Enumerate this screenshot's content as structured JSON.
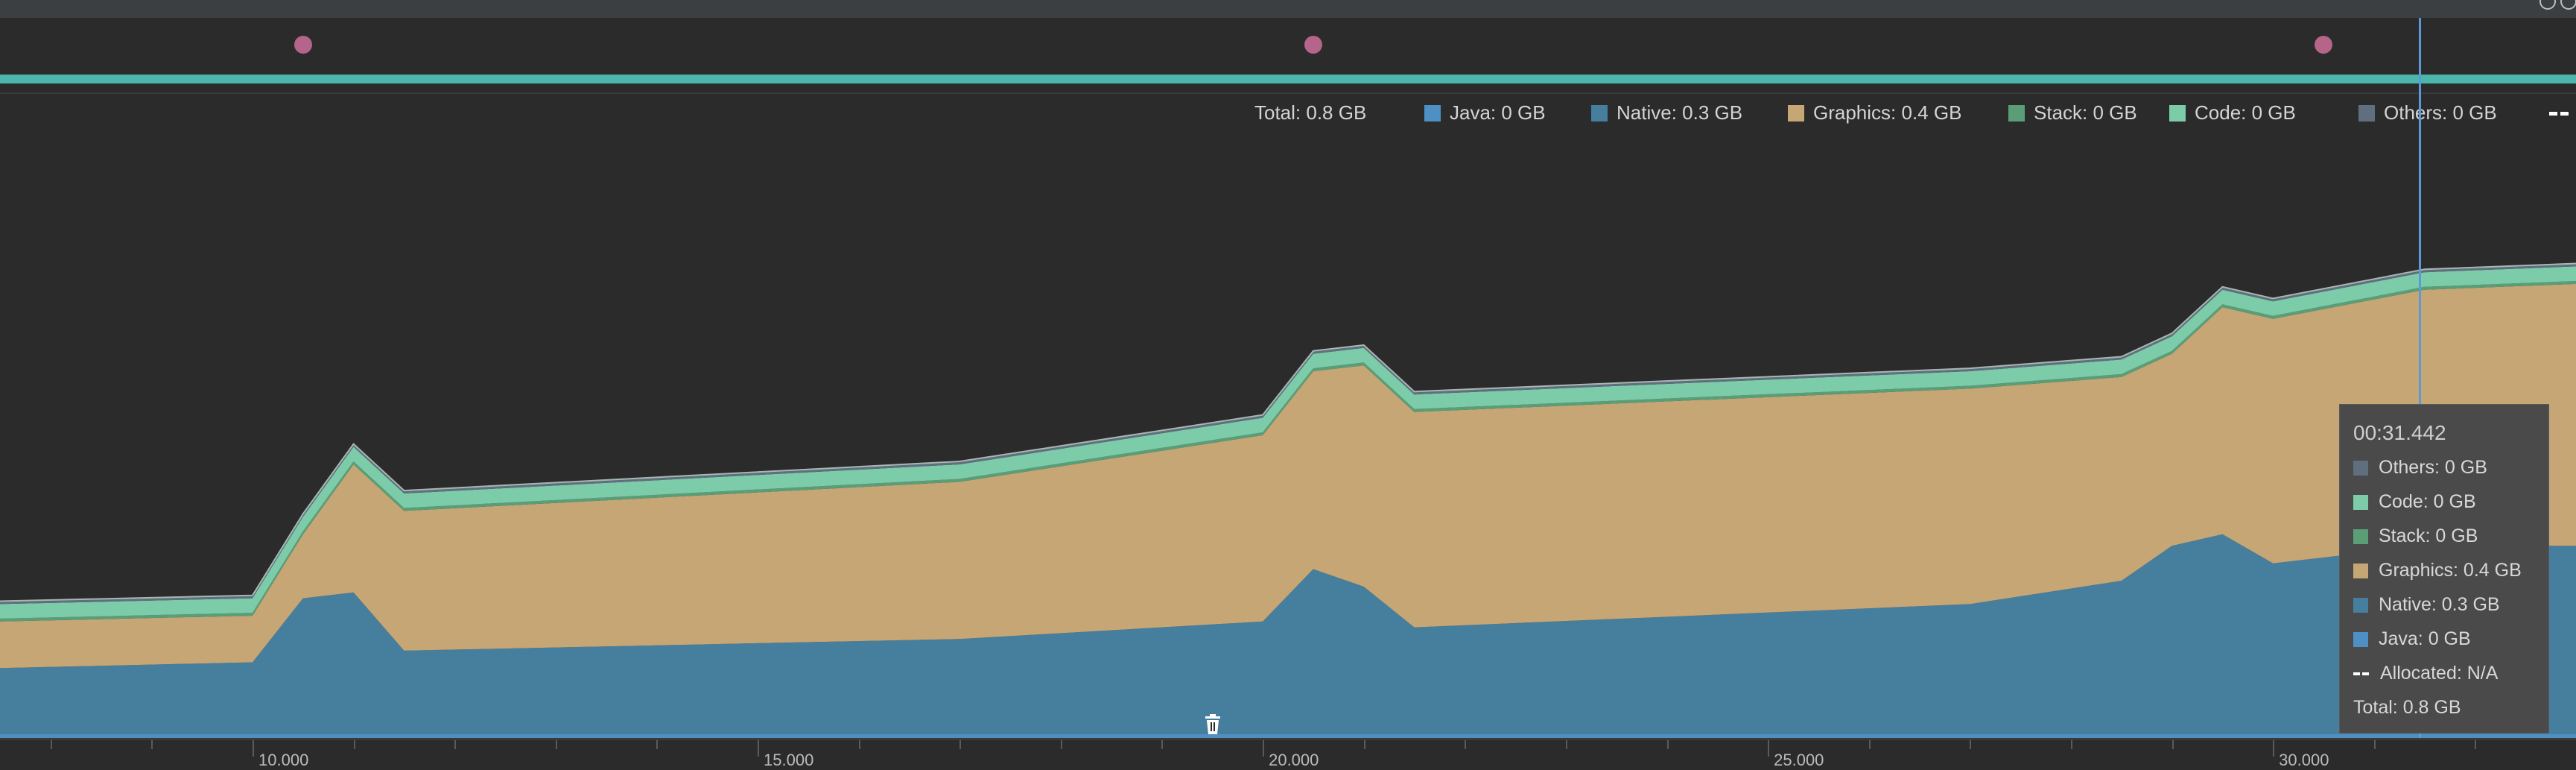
{
  "legend": {
    "total": "Total: 0.8 GB",
    "java": "Java: 0 GB",
    "native": "Native: 0.3 GB",
    "graphics": "Graphics: 0.4 GB",
    "stack": "Stack: 0 GB",
    "code": "Code: 0 GB",
    "others": "Others: 0 GB"
  },
  "axis": {
    "ticks": [
      "10.000",
      "15.000",
      "20.000",
      "25.000",
      "30.000"
    ]
  },
  "tooltip": {
    "time": "00:31.442",
    "others": "Others: 0 GB",
    "code": "Code: 0 GB",
    "stack": "Stack: 0 GB",
    "graphics": "Graphics: 0.4 GB",
    "native": "Native: 0.3 GB",
    "java": "Java: 0 GB",
    "allocated": "Allocated: N/A",
    "total": "Total: 0.8 GB"
  },
  "colors": {
    "java": "#4e90c4",
    "native": "#467e9e",
    "graphics": "#c5a674",
    "stack": "#5a9e78",
    "code": "#7cccaa",
    "others": "#5f6f7e",
    "event_dot": "#b5648a",
    "session_bar": "#4db6ac",
    "cursor": "#5b9bd5"
  },
  "icons": {
    "event": "gc-event-dot",
    "trash": "trash-icon",
    "allocated": "dashed-line-icon"
  },
  "chart_data": {
    "type": "area",
    "x": [
      7.5,
      10.0,
      10.5,
      11.0,
      11.5,
      17.0,
      20.0,
      20.5,
      21.0,
      21.5,
      27.0,
      28.5,
      29.0,
      29.5,
      30.0,
      31.5
    ],
    "series": [
      {
        "name": "Java",
        "values": [
          0,
          0,
          0,
          0,
          0,
          0,
          0,
          0,
          0,
          0,
          0,
          0,
          0,
          0,
          0,
          0
        ]
      },
      {
        "name": "Native",
        "values": [
          0.12,
          0.13,
          0.24,
          0.25,
          0.15,
          0.17,
          0.2,
          0.29,
          0.26,
          0.19,
          0.23,
          0.27,
          0.33,
          0.35,
          0.3,
          0.33
        ]
      },
      {
        "name": "Graphics",
        "values": [
          0.08,
          0.08,
          0.11,
          0.22,
          0.24,
          0.27,
          0.32,
          0.34,
          0.38,
          0.37,
          0.37,
          0.35,
          0.33,
          0.39,
          0.42,
          0.44
        ]
      },
      {
        "name": "Stack",
        "values": [
          0.005,
          0.005,
          0.005,
          0.005,
          0.005,
          0.005,
          0.005,
          0.005,
          0.005,
          0.005,
          0.005,
          0.005,
          0.005,
          0.005,
          0.005,
          0.005
        ]
      },
      {
        "name": "Code",
        "values": [
          0.025,
          0.025,
          0.025,
          0.025,
          0.025,
          0.025,
          0.025,
          0.025,
          0.025,
          0.025,
          0.025,
          0.025,
          0.025,
          0.025,
          0.025,
          0.025
        ]
      },
      {
        "name": "Others",
        "values": [
          0.005,
          0.005,
          0.005,
          0.005,
          0.005,
          0.005,
          0.005,
          0.005,
          0.005,
          0.005,
          0.005,
          0.005,
          0.005,
          0.005,
          0.005,
          0.005
        ]
      }
    ],
    "events_x": [
      10.5,
      20.5,
      30.5
    ],
    "cursor_x": 31.442,
    "xlim": [
      7.5,
      33.0
    ],
    "ylim": [
      0,
      1.05
    ],
    "grid": false,
    "stacked": true
  }
}
